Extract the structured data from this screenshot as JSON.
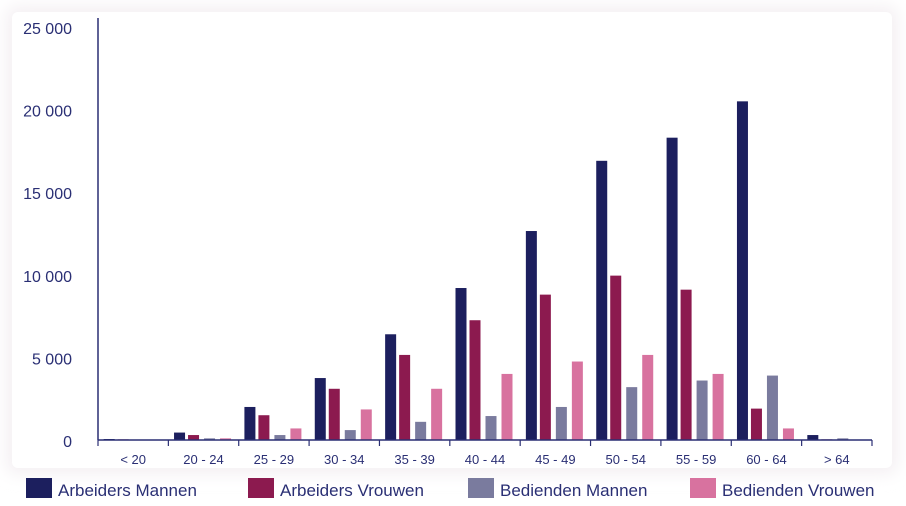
{
  "chart_data": {
    "type": "bar",
    "categories": [
      "< 20",
      "20 - 24",
      "25 - 29",
      "30 - 34",
      "35 - 39",
      "40 - 44",
      "45 - 49",
      "50 - 54",
      "55 - 59",
      "60 - 64",
      "> 64"
    ],
    "y_ticks": [
      "0",
      "5 000",
      "10 000",
      "15 000",
      "20 000",
      "25 000"
    ],
    "ylim": [
      0,
      25000
    ],
    "grid": false,
    "legend_position": "bottom",
    "series": [
      {
        "name": "Arbeiders Mannen",
        "color": "#1c1f5e",
        "values": [
          60,
          450,
          2000,
          3750,
          6400,
          9200,
          12650,
          16900,
          18300,
          20500,
          300
        ]
      },
      {
        "name": "Arbeiders Vrouwen",
        "color": "#8c1a4f",
        "values": [
          40,
          300,
          1500,
          3100,
          5150,
          7250,
          8800,
          9950,
          9100,
          1900,
          40
        ]
      },
      {
        "name": "Bedienden Mannen",
        "color": "#7a7b9e",
        "values": [
          20,
          100,
          300,
          600,
          1100,
          1450,
          2000,
          3200,
          3600,
          3900,
          100
        ]
      },
      {
        "name": "Bedienden Vrouwen",
        "color": "#d8729f",
        "values": [
          20,
          100,
          700,
          1850,
          3100,
          4000,
          4750,
          5150,
          4000,
          700,
          20
        ]
      }
    ]
  }
}
